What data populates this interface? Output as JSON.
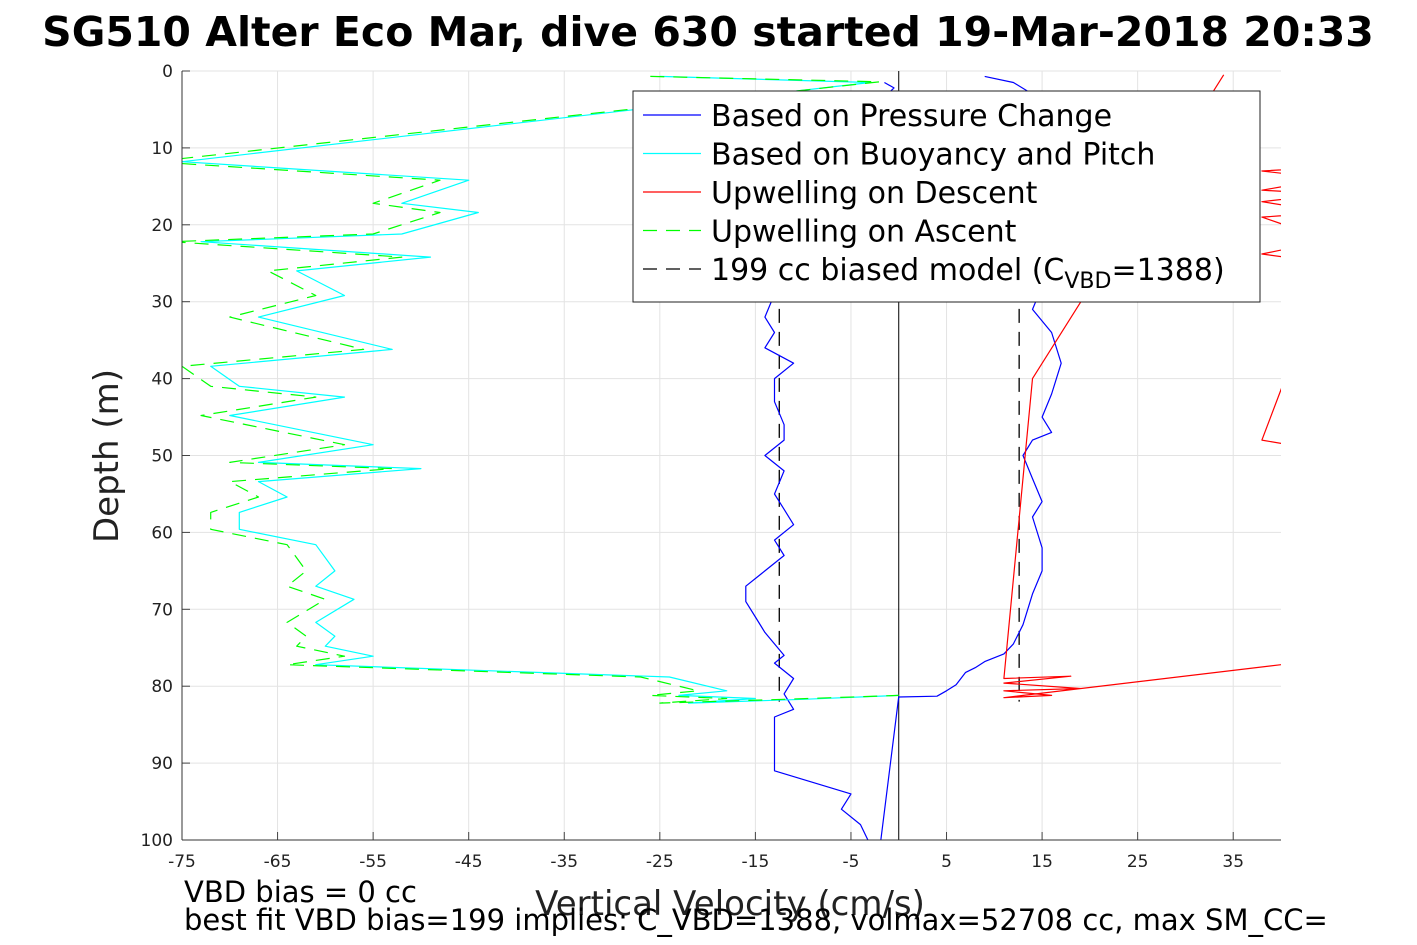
{
  "chart_data": {
    "type": "line",
    "title": "SG510 Alter Eco Mar, dive 630 started 19-Mar-2018 20:33",
    "xlabel": "Vertical Velocity (cm/s)",
    "ylabel": "Depth (m)",
    "xlim": [
      -75,
      40
    ],
    "ylim": [
      0,
      100
    ],
    "y_reversed": true,
    "grid": true,
    "legend_position": "top-right",
    "x_ticks": [
      -75,
      -65,
      -55,
      -45,
      -35,
      -25,
      -15,
      -5,
      5,
      15,
      25,
      35
    ],
    "y_ticks": [
      0,
      10,
      20,
      30,
      40,
      50,
      60,
      70,
      80,
      90,
      100
    ],
    "legend": {
      "pressure": "Based on Pressure Change",
      "buoyancy": "Based on Buoyancy and Pitch",
      "upwell_descent": "Upwelling on Descent",
      "upwell_ascent": "Upwelling on Ascent",
      "model_prefix": "199 cc biased model (C",
      "model_sub": "VBD",
      "model_suffix": "=1388)"
    },
    "colors": {
      "pressure": "#0000ff",
      "buoyancy": "#00ffff",
      "upwell_descent": "#ff0000",
      "upwell_ascent": "#00ff00",
      "model": "#000000"
    },
    "series": [
      {
        "name": "Based on Pressure Change",
        "key": "pressure",
        "x": [
          -1.5,
          -0.5,
          -2,
          -4,
          -5,
          -6,
          -5,
          -7,
          -10,
          -12,
          -13,
          -14,
          -13,
          -14,
          -11,
          -13,
          -13,
          -12,
          -12,
          -14,
          -12,
          -13,
          -12,
          -11,
          -13,
          -12,
          -14,
          -16,
          -16,
          -15,
          -14,
          -12,
          -13,
          -11,
          -12,
          -11,
          -13,
          -13,
          -13,
          -13,
          -5,
          -6,
          -4,
          -3,
          -2,
          0,
          4,
          5,
          6,
          7,
          8,
          9,
          11,
          12,
          13,
          14,
          15,
          15,
          14,
          15,
          14,
          13,
          14,
          16,
          15,
          16,
          17,
          16,
          14,
          15,
          14,
          13,
          13,
          14,
          15,
          14,
          15,
          14,
          12,
          9
        ],
        "y": [
          1.5,
          2.2,
          4,
          6,
          8,
          10,
          14,
          18,
          22,
          26,
          29,
          32,
          34,
          36,
          38,
          40,
          43,
          46,
          48,
          50,
          52,
          55,
          57,
          59,
          61,
          63,
          65,
          67,
          69,
          71,
          73,
          76,
          77,
          79,
          81,
          83,
          84,
          86,
          88,
          91,
          94,
          96,
          98,
          100.6,
          101.3,
          81.4,
          81.3,
          80.6,
          79.8,
          78.2,
          77.6,
          76.8,
          75.8,
          74.5,
          72,
          68,
          65,
          62,
          58,
          56,
          53,
          50,
          48,
          47,
          45,
          42,
          38,
          34,
          31,
          28,
          25,
          22,
          18,
          14,
          11,
          8,
          5,
          3,
          1.5,
          0.7
        ]
      },
      {
        "name": "Based on Buoyancy and Pitch",
        "key": "buoyancy",
        "x": [
          -25,
          -3,
          -75,
          -45,
          -52,
          -44,
          -52,
          -73,
          -49,
          -63,
          -58,
          -67,
          -53,
          -72,
          -69,
          -58,
          -70,
          -55,
          -67,
          -50,
          -67,
          -64,
          -69,
          -69,
          -61,
          -59,
          -61,
          -57,
          -61,
          -59,
          -60,
          -55,
          -61,
          -24,
          -18,
          -23,
          -15,
          -22,
          -10,
          0
        ],
        "y": [
          0.7,
          1.5,
          11.8,
          14.2,
          17.2,
          18.4,
          21.2,
          22.2,
          24.2,
          26,
          29.2,
          32,
          36.2,
          38.4,
          41,
          42.4,
          44.8,
          48.6,
          50.9,
          51.7,
          53.4,
          55.4,
          57.4,
          59.6,
          61.6,
          65,
          67,
          68.7,
          71.7,
          73.5,
          74.8,
          76.1,
          77.2,
          78.8,
          80.6,
          81.2,
          81.6,
          82.2,
          81.7,
          81.2
        ]
      },
      {
        "name": "Upwelling on Ascent",
        "key": "upwell_ascent",
        "x": [
          -26,
          -2,
          -78,
          -48,
          -55,
          -48,
          -55,
          -76,
          -52,
          -66,
          -61,
          -70,
          -56,
          -75,
          -72,
          -61,
          -73,
          -58,
          -70,
          -53,
          -70,
          -67,
          -72,
          -72,
          -64,
          -62,
          -64,
          -60,
          -64,
          -62,
          -63,
          -58,
          -64,
          -27,
          -21,
          -26,
          -18,
          -25,
          -12,
          0
        ],
        "y": [
          0.7,
          1.4,
          11.8,
          14.2,
          17.2,
          18.4,
          21.2,
          22.2,
          24.2,
          26,
          29.2,
          32,
          36.2,
          38.4,
          41,
          42.4,
          44.8,
          48.6,
          50.9,
          51.7,
          53.4,
          55.4,
          57.4,
          59.6,
          61.6,
          65,
          67,
          68.7,
          71.7,
          73.5,
          74.8,
          76.1,
          77.2,
          78.8,
          80.6,
          81.2,
          81.6,
          82.2,
          81.7,
          81.2
        ]
      },
      {
        "name": "Upwelling on Descent",
        "key": "upwell_descent",
        "x": [
          34,
          14,
          11,
          18,
          11,
          19,
          11,
          16,
          11,
          40
        ],
        "y": [
          0.5,
          40,
          79,
          78.7,
          79.6,
          80.3,
          80.6,
          81.2,
          81.5,
          77.2
        ]
      },
      {
        "name": "Upwelling on Descent (edge spikes)",
        "key": "upwell_descent",
        "x": [
          45,
          38,
          45,
          38,
          45,
          38,
          45,
          38,
          45,
          38,
          45,
          38,
          45
        ],
        "y": [
          12.5,
          13,
          14,
          15.5,
          16,
          17,
          18.4,
          19,
          22,
          23.8,
          25,
          48,
          49.5
        ]
      }
    ],
    "model_lines_x": [
      -12.5,
      12.6
    ],
    "model_lines_ylim": [
      10,
      82
    ],
    "zero_line_x": 0
  },
  "footer": {
    "line1": "VBD bias = 0 cc",
    "line2": "best fit VBD bias=199 implies: C_VBD=1388, volmax=52708 cc, max SM_CC="
  }
}
